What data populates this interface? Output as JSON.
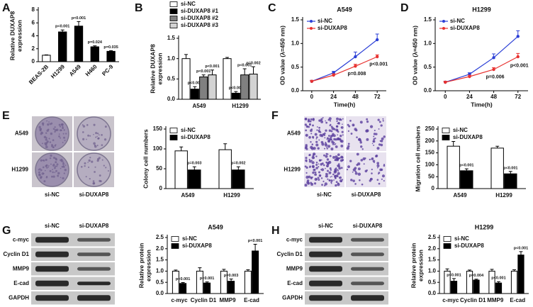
{
  "panel_letters": [
    "A",
    "B",
    "C",
    "D",
    "E",
    "F",
    "G",
    "H"
  ],
  "chart_data": [
    {
      "type": "bar",
      "ylabel": [
        "Relative DUXAP8",
        "expression"
      ],
      "categories": [
        "BEAS-2B",
        "H1299",
        "A549",
        "H460",
        "PC-9"
      ],
      "values": [
        1.0,
        4.6,
        5.5,
        2.3,
        1.6
      ],
      "errors": [
        0.05,
        0.3,
        0.7,
        0.15,
        0.1
      ],
      "colors": [
        "#ffffff",
        "#000000",
        "#000000",
        "#000000",
        "#000000"
      ],
      "annotations": [
        null,
        "p<0.001",
        "p<0.001",
        "p=0.024",
        "p=0.035"
      ],
      "xtick_rotation": 45,
      "ylim": [
        0,
        8
      ],
      "yticks": [
        0,
        2,
        4,
        6,
        8
      ]
    },
    {
      "type": "bar",
      "ylabel": [
        "Relative DUXAP8",
        "expression"
      ],
      "categories": [
        "A549",
        "H1299"
      ],
      "legend": "above",
      "series": [
        {
          "name": "si-NC",
          "color": "#ffffff",
          "values": [
            1.0,
            1.0
          ],
          "errors": [
            0.1,
            0.03
          ],
          "annotations": [
            null,
            null
          ]
        },
        {
          "name": "si-DUXAP8  #1",
          "color": "#000000",
          "values": [
            0.25,
            0.15
          ],
          "errors": [
            0.06,
            0.04
          ],
          "annotations": [
            "p<0.001",
            "p<0.001"
          ]
        },
        {
          "name": "si-DUXAP8  #2",
          "color": "#808080",
          "values": [
            0.55,
            0.6
          ],
          "errors": [
            0.05,
            0.15
          ],
          "annotations": [
            "p<0.001",
            "p<0.001"
          ]
        },
        {
          "name": "si-DUXAP8  #3",
          "color": "#d3d3d3",
          "values": [
            0.6,
            0.62
          ],
          "errors": [
            0.12,
            0.18
          ],
          "annotations": [
            "p<0.001",
            "p=0.002"
          ]
        }
      ],
      "ylim": [
        0,
        1.5
      ],
      "yticks": [
        {
          "value": 0,
          "label": "0.0"
        },
        0.5,
        {
          "value": 1,
          "label": "1.0"
        },
        1.5
      ]
    },
    {
      "type": "line",
      "title": "A549",
      "xlabel": "Time(h)",
      "ylabel": "OD value (λ=450 nm)",
      "legend": "upper left",
      "x": [
        0,
        24,
        48,
        72
      ],
      "series": [
        {
          "name": "si-NC",
          "color": "#2b3fd6",
          "values": [
            0.2,
            0.38,
            0.72,
            1.08
          ],
          "errors": [
            0.02,
            0.03,
            0.1,
            0.12
          ],
          "annotations": [
            null,
            null,
            null,
            null
          ]
        },
        {
          "name": "si-DUXAP8",
          "color": "#e8312f",
          "values": [
            0.2,
            0.33,
            0.52,
            0.72
          ],
          "errors": [
            0.02,
            0.03,
            0.04,
            0.04
          ],
          "annotations": [
            null,
            null,
            "p=0.008",
            "p<0.001"
          ]
        }
      ],
      "xlim": [
        -10,
        82
      ],
      "xticks": [
        0,
        24,
        48,
        72
      ],
      "ylim": [
        0,
        1.5
      ],
      "yticks": [
        {
          "value": 0,
          "label": "0.0"
        },
        0.5,
        {
          "value": 1,
          "label": "1.0"
        },
        1.5
      ]
    },
    {
      "type": "line",
      "title": "H1299",
      "xlabel": "Time(h)",
      "ylabel": "OD value (λ=450 nm)",
      "legend": "upper left",
      "x": [
        0,
        24,
        48,
        72
      ],
      "series": [
        {
          "name": "si-NC",
          "color": "#2b3fd6",
          "values": [
            0.18,
            0.35,
            0.7,
            1.15
          ],
          "errors": [
            0.02,
            0.03,
            0.08,
            0.12
          ],
          "annotations": [
            null,
            null,
            null,
            null
          ]
        },
        {
          "name": "si-DUXAP8",
          "color": "#e8312f",
          "values": [
            0.18,
            0.3,
            0.45,
            0.72
          ],
          "errors": [
            0.02,
            0.03,
            0.04,
            0.07
          ],
          "annotations": [
            null,
            null,
            "p=0.006",
            "p<0.001"
          ]
        }
      ],
      "xlim": [
        -10,
        82
      ],
      "xticks": [
        0,
        24,
        48,
        72
      ],
      "ylim": [
        0,
        1.5
      ],
      "yticks": [
        {
          "value": 0,
          "label": "0.0"
        },
        0.5,
        {
          "value": 1,
          "label": "1.0"
        },
        1.5
      ]
    },
    {
      "type": "bar",
      "ylabel": "Colony cell numbers",
      "categories": [
        "A549",
        "H1299"
      ],
      "legend": "upper left",
      "series": [
        {
          "name": "si-NC",
          "color": "#ffffff",
          "values": [
            95,
            98
          ],
          "errors": [
            10,
            15
          ],
          "annotations": [
            null,
            null
          ]
        },
        {
          "name": "si-DUXAP8",
          "color": "#000000",
          "values": [
            47,
            47
          ],
          "errors": [
            8,
            8
          ],
          "annotations": [
            "p=0.003",
            "p=0.002"
          ]
        }
      ],
      "ylim": [
        0,
        150
      ],
      "yticks": [
        0,
        50,
        100,
        150
      ]
    },
    {
      "type": "bar",
      "ylabel": "Migration cell numbers",
      "categories": [
        "A549",
        "H1299"
      ],
      "legend": "upper left",
      "series": [
        {
          "name": "si-NC",
          "color": "#ffffff",
          "values": [
            178,
            170
          ],
          "errors": [
            20,
            8
          ],
          "annotations": [
            null,
            null
          ]
        },
        {
          "name": "si-DUXAP8",
          "color": "#000000",
          "values": [
            75,
            62
          ],
          "errors": [
            8,
            10
          ],
          "annotations": [
            "p<0.001",
            "p<0.001"
          ]
        }
      ],
      "ylim": [
        0,
        250
      ],
      "yticks": [
        0,
        50,
        100,
        150,
        200,
        250
      ]
    },
    {
      "type": "bar",
      "title": "A549",
      "ylabel": [
        "Relative protein",
        "expression"
      ],
      "categories": [
        "c-myc",
        "Cyclin D1",
        "MMP9",
        "E-cad"
      ],
      "legend": "upper left",
      "series": [
        {
          "name": "si-NC",
          "color": "#ffffff",
          "values": [
            1.0,
            1.0,
            1.0,
            1.0
          ],
          "errors": [
            0.05,
            0.15,
            0.08,
            0.06
          ],
          "annotations": [
            null,
            null,
            null,
            null
          ]
        },
        {
          "name": "si-DUXAP8",
          "color": "#000000",
          "values": [
            0.45,
            0.47,
            0.55,
            1.9
          ],
          "errors": [
            0.04,
            0.05,
            0.1,
            0.3
          ],
          "annotations": [
            "p<0.001",
            "p<0.001",
            "p=0.003",
            "p<0.001"
          ]
        }
      ],
      "ylim": [
        0,
        2.5
      ],
      "yticks": [
        {
          "value": 0,
          "label": "0.0"
        },
        0.5,
        {
          "value": 1,
          "label": "1.0"
        },
        1.5,
        {
          "value": 2,
          "label": "2.0"
        },
        2.5
      ]
    },
    {
      "type": "bar",
      "title": "H1299",
      "ylabel": [
        "Relative protein",
        "expression"
      ],
      "categories": [
        "c-myc",
        "Cyclin D1",
        "MMP9",
        "E-cad"
      ],
      "legend": "upper left",
      "series": [
        {
          "name": "si-NC",
          "color": "#ffffff",
          "values": [
            1.0,
            1.0,
            1.0,
            1.0
          ],
          "errors": [
            0.1,
            0.05,
            0.08,
            0.06
          ],
          "annotations": [
            null,
            null,
            null,
            null
          ]
        },
        {
          "name": "si-DUXAP8",
          "color": "#000000",
          "values": [
            0.55,
            0.6,
            0.47,
            1.72
          ],
          "errors": [
            0.12,
            0.04,
            0.06,
            0.15
          ],
          "annotations": [
            "p<0.001",
            "p=0.004",
            "p<0.001",
            "p<0.001"
          ]
        }
      ],
      "ylim": [
        0,
        2.5
      ],
      "yticks": [
        {
          "value": 0,
          "label": "0.0"
        },
        0.5,
        {
          "value": 1,
          "label": "1.0"
        },
        1.5,
        {
          "value": 2,
          "label": "2.0"
        },
        2.5
      ]
    }
  ],
  "wells": [
    {
      "rows": [
        "A549",
        "H1299"
      ],
      "columns": [
        "si-NC",
        "si-DUXAP8"
      ]
    },
    {
      "rows": [
        "A549",
        "H1299"
      ],
      "columns": [
        "si-NC",
        "si-DUXAP8"
      ]
    }
  ],
  "blots": [
    {
      "columns": [
        "si-NC",
        "si-DUXAP8"
      ],
      "rows": [
        "c-myc",
        "Cyclin D1",
        "MMP9",
        "E-cad",
        "GAPDH"
      ]
    },
    {
      "columns": [
        "si-NC",
        "si-DUXAP8"
      ],
      "rows": [
        "c-myc",
        "Cyclin D1",
        "MMP9",
        "E-cad",
        "GAPDH"
      ]
    }
  ]
}
